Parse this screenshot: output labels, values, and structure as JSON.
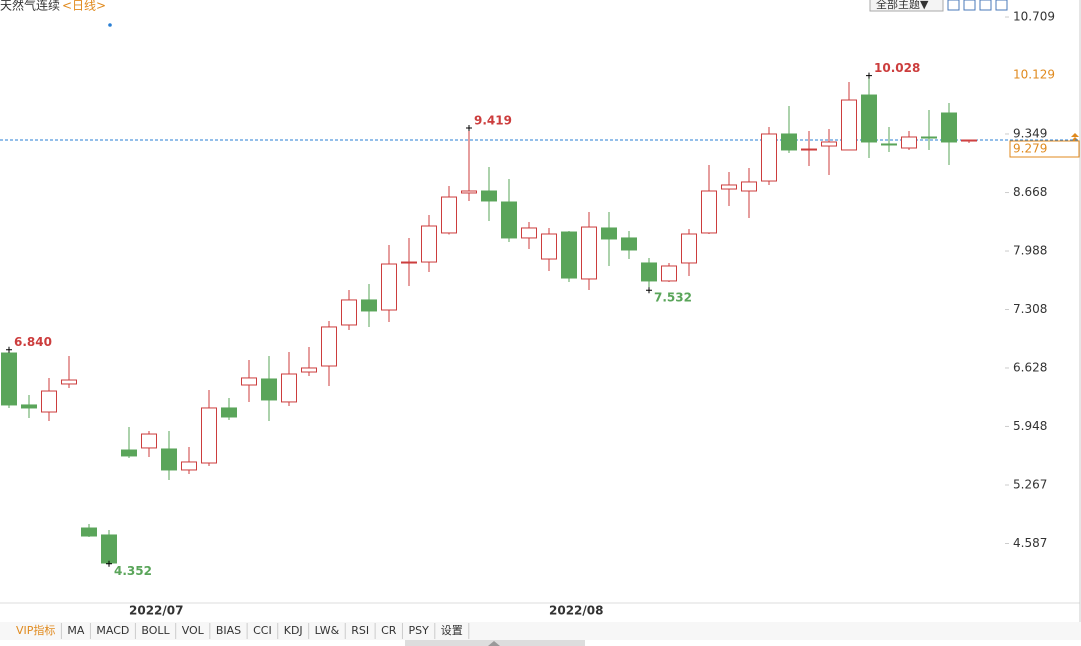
{
  "chart_data": {
    "type": "candlestick",
    "title": "天然气连续",
    "period": "<日线>",
    "theme_button": "全部主题▼",
    "categories": [
      null,
      null,
      null,
      null,
      null,
      null,
      null,
      "2022/07",
      null,
      null,
      null,
      null,
      null,
      null,
      null,
      null,
      null,
      null,
      null,
      null,
      null,
      null,
      null,
      null,
      null,
      null,
      null,
      null,
      "2022/08",
      null,
      null,
      null,
      null,
      null,
      null,
      null,
      null,
      null,
      null,
      null,
      null,
      null,
      null,
      null,
      null,
      null,
      null,
      null,
      null
    ],
    "open": [
      6.802,
      6.198,
      6.116,
      6.442,
      4.767,
      4.686,
      5.674,
      5.698,
      5.686,
      5.442,
      5.523,
      6.163,
      6.43,
      6.5,
      6.233,
      6.581,
      6.651,
      7.128,
      7.419,
      7.302,
      7.849,
      7.86,
      8.198,
      8.663,
      8.686,
      8.558,
      8.14,
      7.895,
      8.209,
      7.663,
      8.256,
      8.14,
      7.849,
      7.64,
      7.849,
      8.198,
      8.709,
      8.686,
      8.802,
      9.349,
      9.163,
      9.209,
      9.163,
      9.802,
      9.233,
      9.186,
      9.314,
      9.593,
      9.267
    ],
    "high": [
      6.84,
      6.314,
      6.512,
      6.767,
      4.814,
      4.744,
      5.942,
      5.895,
      5.895,
      5.709,
      6.372,
      6.279,
      6.721,
      6.767,
      6.814,
      6.872,
      7.174,
      7.535,
      7.605,
      8.058,
      8.14,
      8.407,
      8.744,
      9.419,
      8.965,
      8.826,
      8.326,
      8.256,
      8.221,
      8.442,
      8.442,
      8.221,
      7.907,
      7.849,
      8.244,
      8.988,
      8.907,
      8.953,
      9.43,
      9.674,
      9.384,
      9.407,
      9.953,
      10.028,
      9.43,
      9.384,
      9.628,
      9.709,
      9.279
    ],
    "low": [
      6.163,
      6.047,
      6.012,
      6.395,
      4.663,
      4.352,
      5.581,
      5.593,
      5.326,
      5.395,
      5.488,
      6.023,
      6.233,
      6.012,
      6.186,
      6.535,
      6.419,
      7.07,
      7.105,
      7.163,
      7.581,
      7.744,
      8.18,
      8.57,
      8.337,
      8.093,
      8.012,
      7.756,
      7.628,
      7.535,
      7.814,
      7.895,
      7.532,
      7.628,
      7.698,
      8.186,
      8.512,
      8.372,
      8.756,
      9.128,
      8.977,
      8.872,
      9.163,
      9.07,
      9.14,
      9.163,
      9.163,
      8.988,
      9.244
    ],
    "close": [
      6.198,
      6.163,
      6.36,
      6.488,
      4.674,
      4.36,
      5.605,
      5.86,
      5.442,
      5.535,
      6.163,
      6.058,
      6.512,
      6.256,
      6.558,
      6.628,
      7.105,
      7.419,
      7.291,
      7.837,
      7.86,
      8.279,
      8.616,
      8.686,
      8.57,
      8.14,
      8.256,
      8.186,
      7.674,
      8.267,
      8.128,
      8.0,
      7.64,
      7.814,
      8.186,
      8.686,
      8.756,
      8.791,
      9.349,
      9.163,
      9.174,
      9.256,
      9.744,
      9.256,
      9.221,
      9.314,
      9.302,
      9.256,
      9.279
    ],
    "high_labels": [
      "6.840",
      null,
      null,
      null,
      null,
      null,
      null,
      null,
      null,
      null,
      null,
      null,
      null,
      null,
      null,
      null,
      null,
      null,
      null,
      null,
      null,
      null,
      null,
      "9.419",
      null,
      null,
      null,
      null,
      null,
      null,
      null,
      null,
      null,
      null,
      null,
      null,
      null,
      null,
      null,
      null,
      null,
      null,
      null,
      "10.028",
      null,
      null,
      null,
      null,
      null
    ],
    "low_labels": [
      null,
      null,
      null,
      null,
      null,
      "4.352",
      null,
      null,
      null,
      null,
      null,
      null,
      null,
      null,
      null,
      null,
      null,
      null,
      null,
      null,
      null,
      null,
      null,
      null,
      null,
      null,
      null,
      null,
      null,
      null,
      null,
      null,
      "7.532",
      null,
      null,
      null,
      null,
      null,
      null,
      null,
      null,
      null,
      null,
      null,
      null,
      null,
      null,
      null,
      null
    ],
    "up_color": "#cc3d3d",
    "down_color": "#5aa55a",
    "ylim": [
      3.895,
      10.907
    ],
    "yticks": [
      10.709,
      9.349,
      8.668,
      7.988,
      7.308,
      6.628,
      5.948,
      5.267,
      4.587
    ],
    "marker_price": 10.129,
    "last_price": 9.279,
    "tabs": [
      "VIP指标",
      "MA",
      "MACD",
      "BOLL",
      "VOL",
      "BIAS",
      "CCI",
      "KDJ",
      "LW&",
      "RSI",
      "CR",
      "PSY",
      "设置"
    ]
  }
}
